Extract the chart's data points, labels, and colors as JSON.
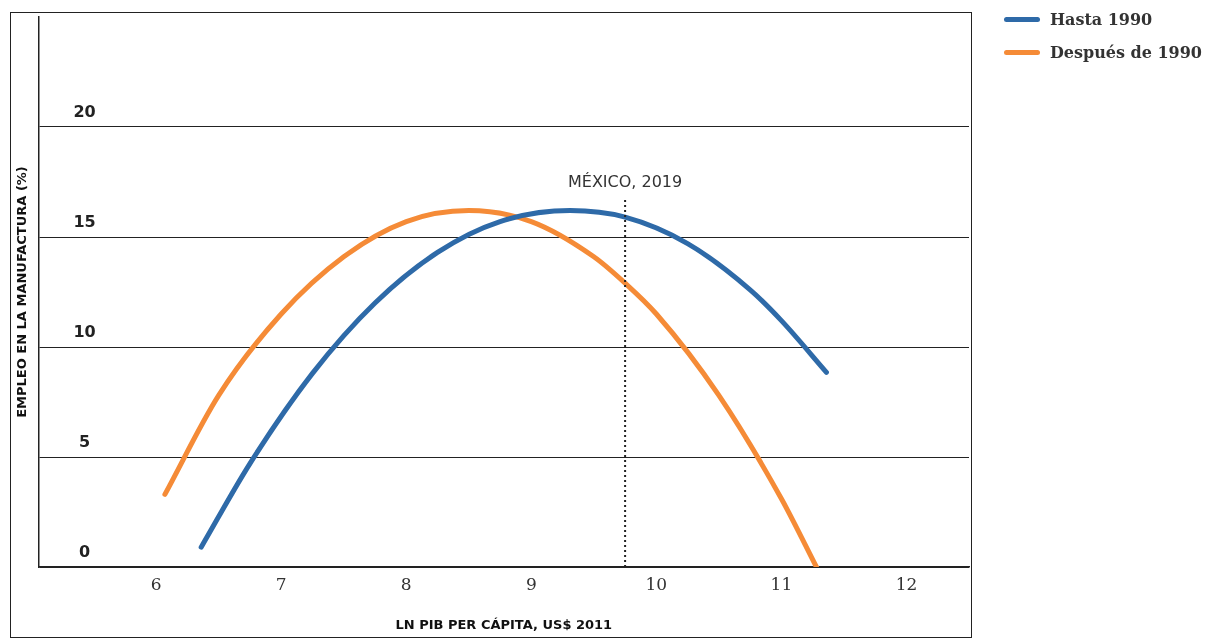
{
  "chart_data": {
    "type": "line",
    "xlabel": "LN PIB PER CÁPITA, US$ 2011",
    "ylabel": "EMPLEO EN LA MANUFACTURA (%)",
    "xlim": [
      5.06,
      12.5
    ],
    "xticks": [
      6,
      7,
      8,
      9,
      10,
      11,
      12
    ],
    "ylim": [
      0,
      25
    ],
    "yticks": [
      0,
      5,
      10,
      15,
      20
    ],
    "grid": "y",
    "legend": "top right",
    "marker": "none",
    "line_style": "solid",
    "series": [
      {
        "name": "Hasta 1990",
        "color": "#2e6aa8",
        "x": [
          6.36,
          6.75,
          7.25,
          7.75,
          8.25,
          8.75,
          9.31,
          9.75,
          10.25,
          10.75,
          11.0,
          11.36
        ],
        "values": [
          0.9,
          4.7,
          8.8,
          12.0,
          14.3,
          15.7,
          16.2,
          15.9,
          14.7,
          12.6,
          11.2,
          8.85
        ]
      },
      {
        "name": "Después de 1990",
        "color": "#f58b37",
        "x": [
          6.07,
          6.5,
          7.0,
          7.5,
          8.0,
          8.5,
          9.0,
          9.5,
          9.75,
          10.0,
          10.5,
          11.0,
          11.28
        ],
        "values": [
          3.3,
          7.8,
          11.5,
          14.1,
          15.7,
          16.2,
          15.7,
          14.1,
          12.9,
          11.5,
          7.8,
          3.1,
          0
        ]
      }
    ],
    "ref_lines": [
      {
        "axis": "x",
        "value": 9.75,
        "label": "MÉXICO, 2019",
        "line_style": "dotted",
        "color": "#222222"
      }
    ]
  }
}
